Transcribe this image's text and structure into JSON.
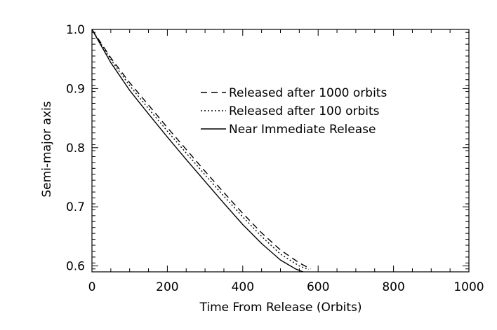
{
  "chart_data": {
    "type": "line",
    "title": "",
    "xlabel": "Time From Release (Orbits)",
    "ylabel": "Semi-major axis",
    "xlim": [
      0,
      1000
    ],
    "ylim": [
      0.59,
      1.0
    ],
    "xticks": [
      0,
      200,
      400,
      600,
      800,
      1000
    ],
    "yticks": [
      0.6,
      0.7,
      0.8,
      0.9,
      1.0
    ],
    "xtick_labels": [
      "0",
      "200",
      "400",
      "600",
      "800",
      "1000"
    ],
    "ytick_labels": [
      "0.6",
      "0.7",
      "0.8",
      "0.9",
      "1.0"
    ],
    "grid": false,
    "legend_position": "top-right",
    "series": [
      {
        "name": "Released after 1000 orbits",
        "style": "dashed",
        "color": "#000000",
        "x": [
          0,
          50,
          100,
          150,
          200,
          250,
          300,
          350,
          400,
          450,
          500,
          550,
          580
        ],
        "y": [
          1.0,
          0.952,
          0.91,
          0.872,
          0.834,
          0.797,
          0.76,
          0.724,
          0.689,
          0.656,
          0.627,
          0.605,
          0.595
        ]
      },
      {
        "name": "Released after 100 orbits",
        "style": "dotted",
        "color": "#000000",
        "x": [
          0,
          50,
          100,
          150,
          200,
          250,
          300,
          350,
          400,
          450,
          500,
          550,
          575
        ],
        "y": [
          1.0,
          0.949,
          0.905,
          0.866,
          0.828,
          0.791,
          0.754,
          0.718,
          0.683,
          0.65,
          0.62,
          0.6,
          0.594
        ]
      },
      {
        "name": "Near Immediate Release",
        "style": "solid",
        "color": "#000000",
        "x": [
          0,
          50,
          100,
          150,
          200,
          250,
          300,
          350,
          400,
          450,
          500,
          540,
          560
        ],
        "y": [
          1.0,
          0.944,
          0.897,
          0.857,
          0.818,
          0.78,
          0.743,
          0.706,
          0.67,
          0.638,
          0.61,
          0.595,
          0.59
        ]
      }
    ]
  }
}
